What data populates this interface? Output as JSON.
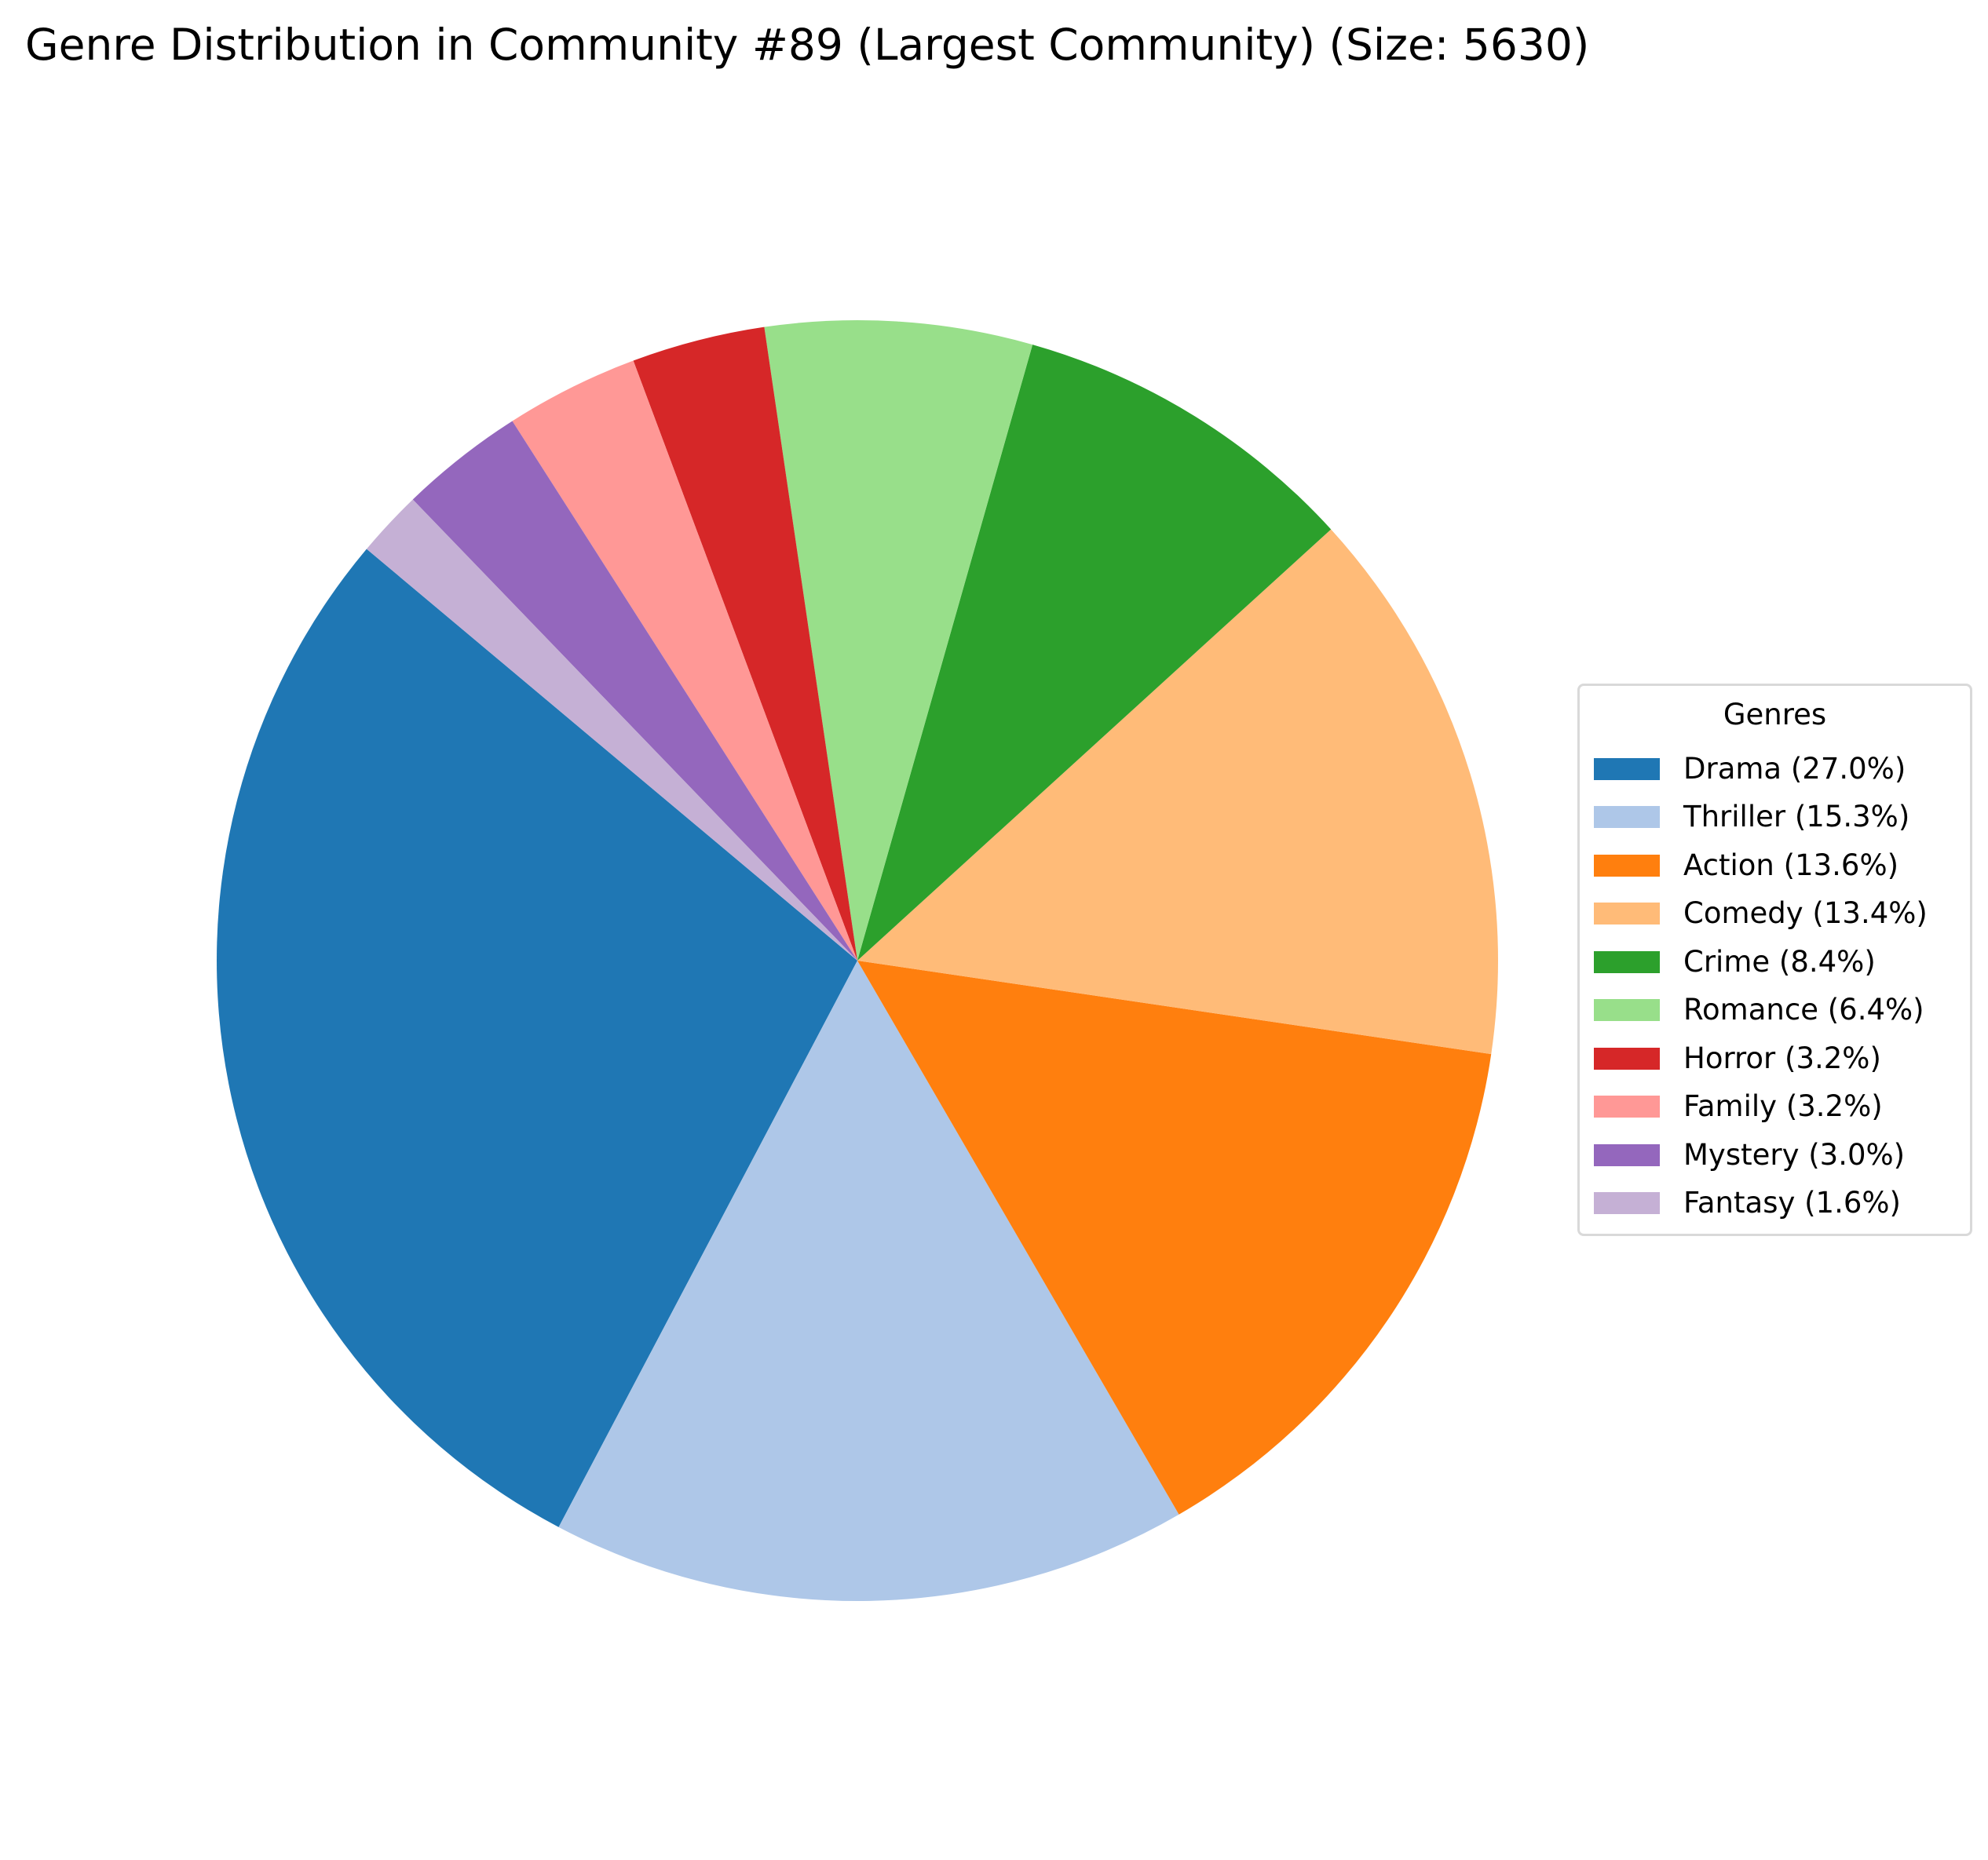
{
  "chart_data": {
    "type": "pie",
    "title": "Genre Distribution in Community #89 (Largest Community) (Size: 5630)",
    "legend": {
      "title": "Genres",
      "placement": "right"
    },
    "start_angle_deg": 140,
    "direction": "counterclockwise",
    "slices": [
      {
        "label": "Drama",
        "legend_label": "Drama (27.0%)",
        "value": 27.0,
        "color": "#1f77b4"
      },
      {
        "label": "Thriller",
        "legend_label": "Thriller (15.3%)",
        "value": 15.3,
        "color": "#aec7e8"
      },
      {
        "label": "Action",
        "legend_label": "Action (13.6%)",
        "value": 13.6,
        "color": "#ff7f0e"
      },
      {
        "label": "Comedy",
        "legend_label": "Comedy (13.4%)",
        "value": 13.4,
        "color": "#ffbb78"
      },
      {
        "label": "Crime",
        "legend_label": "Crime (8.4%)",
        "value": 8.4,
        "color": "#2ca02c"
      },
      {
        "label": "Romance",
        "legend_label": "Romance (6.4%)",
        "value": 6.4,
        "color": "#98df8a"
      },
      {
        "label": "Horror",
        "legend_label": "Horror (3.2%)",
        "value": 3.2,
        "color": "#d62728"
      },
      {
        "label": "Family",
        "legend_label": "Family (3.2%)",
        "value": 3.2,
        "color": "#ff9896"
      },
      {
        "label": "Mystery",
        "legend_label": "Mystery (3.0%)",
        "value": 3.0,
        "color": "#9467bd"
      },
      {
        "label": "Fantasy",
        "legend_label": "Fantasy (1.6%)",
        "value": 1.6,
        "color": "#c5b0d5"
      }
    ]
  }
}
